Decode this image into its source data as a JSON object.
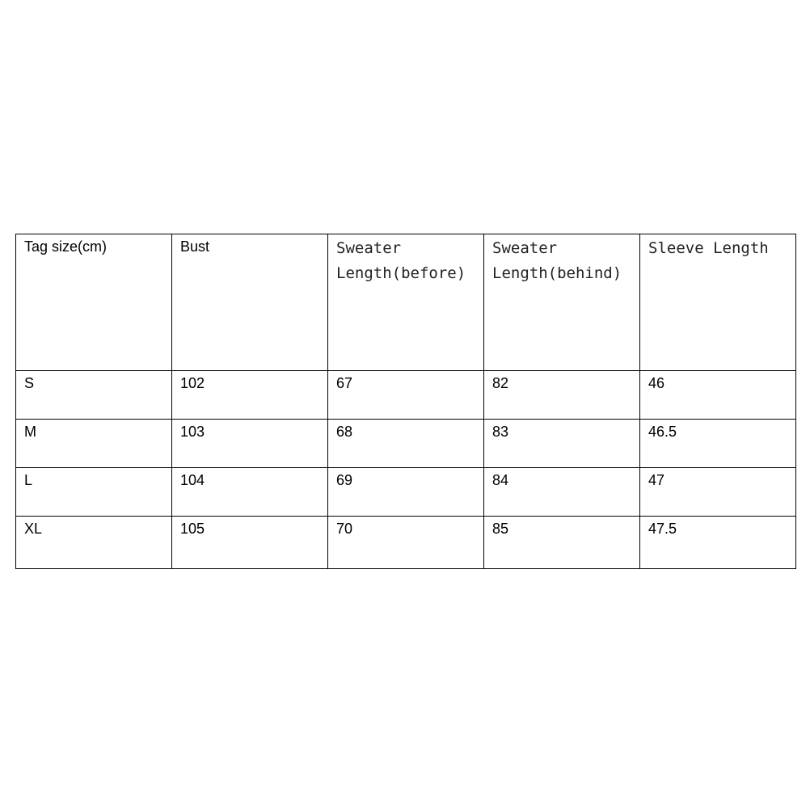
{
  "table": {
    "headers": [
      "Tag size(cm)",
      "Bust",
      "Sweater Length(before)",
      "Sweater Length(behind)",
      "Sleeve Length"
    ],
    "rows": [
      [
        "S",
        "102",
        "67",
        "82",
        "46"
      ],
      [
        "M",
        "103",
        "68",
        "83",
        "46.5"
      ],
      [
        "L",
        "104",
        "69",
        "84",
        "47"
      ],
      [
        "XL",
        "105",
        "70",
        "85",
        "47.5"
      ]
    ]
  }
}
